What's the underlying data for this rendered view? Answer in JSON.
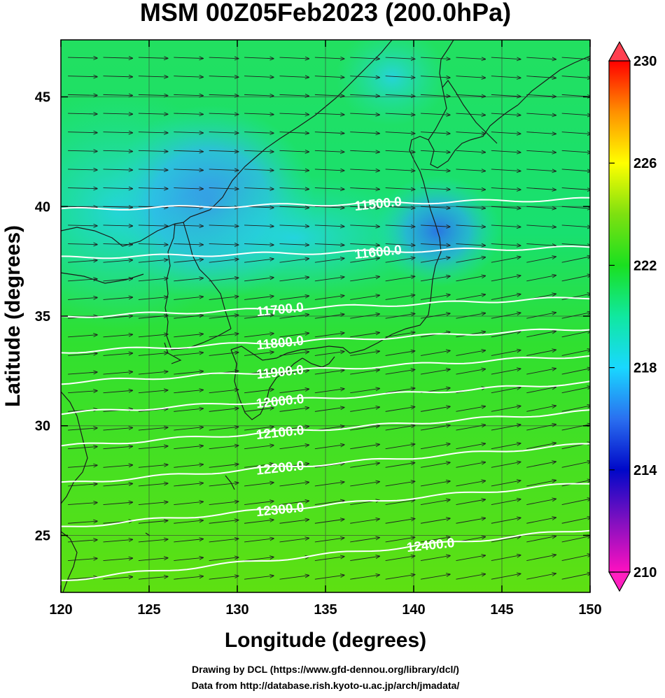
{
  "title": "MSM 00Z05Feb2023 (200.0hPa)",
  "xlabel": "Longitude (degrees)",
  "ylabel": "Latitude  (degrees)",
  "credit_line1": "Drawing by DCL (https://www.gfd-dennou.org/library/dcl/)",
  "credit_line2": "Data from http://database.rish.kyoto-u.ac.jp/arch/jmadata/",
  "chart_data": {
    "type": "heatmap",
    "xlim": [
      120,
      150
    ],
    "ylim": [
      22.4,
      47.6
    ],
    "xticks": [
      "120",
      "125",
      "130",
      "135",
      "140",
      "145",
      "150"
    ],
    "yticks": [
      "25",
      "30",
      "35",
      "40",
      "45"
    ],
    "grid": true,
    "colorbar": {
      "range": [
        210,
        230
      ],
      "tick_labels": [
        "230",
        "226",
        "222",
        "218",
        "214",
        "210"
      ],
      "stops": [
        {
          "value": 210,
          "color": "#ff10c0"
        },
        {
          "value": 212,
          "color": "#8010c0"
        },
        {
          "value": 214,
          "color": "#0008c8"
        },
        {
          "value": 216,
          "color": "#2a70f0"
        },
        {
          "value": 218,
          "color": "#19d8ff"
        },
        {
          "value": 220,
          "color": "#10e8a0"
        },
        {
          "value": 222,
          "color": "#1ae020"
        },
        {
          "value": 224,
          "color": "#7ee010"
        },
        {
          "value": 226,
          "color": "#ffff00"
        },
        {
          "value": 228,
          "color": "#ff9000"
        },
        {
          "value": 230,
          "color": "#ff0000"
        }
      ]
    },
    "contours": [
      {
        "label": "11500.0",
        "lat": 40.5
      },
      {
        "label": "11600.0",
        "lat": 38.3
      },
      {
        "label": "11700.0",
        "lat": 35.6
      },
      {
        "label": "11800.0",
        "lat": 34.0
      },
      {
        "label": "11900.0",
        "lat": 32.6
      },
      {
        "label": "12000.0",
        "lat": 31.2
      },
      {
        "label": "12100.0",
        "lat": 29.7
      },
      {
        "label": "12200.0",
        "lat": 28.0
      },
      {
        "label": "12300.0",
        "lat": 26.0
      },
      {
        "label": "12400.0",
        "lat": 23.6
      }
    ],
    "wind": "westerly flow (arrows pointing east)"
  }
}
